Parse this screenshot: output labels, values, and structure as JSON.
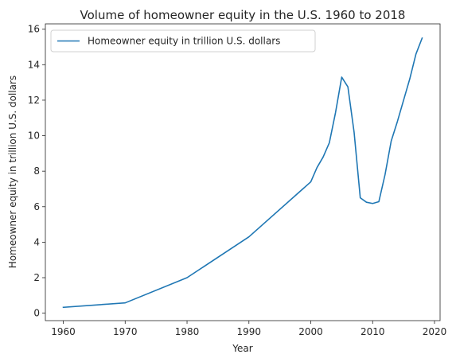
{
  "chart_data": {
    "type": "line",
    "title": "Volume of homeowner equity in the U.S. 1960 to 2018",
    "xlabel": "Year",
    "ylabel": "Homeowner equity in trillion U.S. dollars",
    "xlim": [
      1957.1,
      2020.9
    ],
    "ylim": [
      -0.42,
      16.3
    ],
    "xticks": [
      1960,
      1970,
      1980,
      1990,
      2000,
      2010,
      2020
    ],
    "yticks": [
      0,
      2,
      4,
      6,
      8,
      10,
      12,
      14,
      16
    ],
    "grid": false,
    "legend_position": "top-left",
    "series": [
      {
        "name": "Homeowner equity in trillion U.S. dollars",
        "color": "#1f77b4",
        "x": [
          1960,
          1970,
          1980,
          1990,
          2000,
          2001,
          2002,
          2003,
          2004,
          2005,
          2006,
          2007,
          2008,
          2009,
          2010,
          2011,
          2012,
          2013,
          2014,
          2015,
          2016,
          2017,
          2018
        ],
        "y": [
          0.33,
          0.58,
          2.0,
          4.3,
          7.4,
          8.2,
          8.8,
          9.6,
          11.3,
          13.3,
          12.75,
          10.2,
          6.5,
          6.25,
          6.18,
          6.28,
          7.8,
          9.7,
          10.8,
          12.0,
          13.2,
          14.6,
          15.5
        ]
      }
    ]
  }
}
